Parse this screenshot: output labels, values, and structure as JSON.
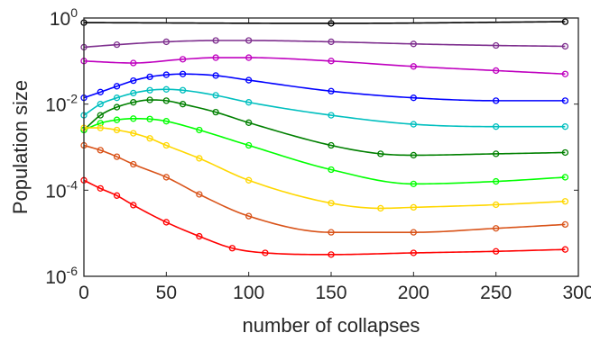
{
  "chart_data": {
    "type": "line",
    "xlabel": "number of collapses",
    "ylabel": "Population size",
    "xlim": [
      0,
      300
    ],
    "ylim": [
      1e-06,
      1
    ],
    "yscale": "log",
    "x_ticks": [
      "0",
      "50",
      "100",
      "150",
      "200",
      "250",
      "300"
    ],
    "y_ticks": [
      {
        "base": "10",
        "exp": "0"
      },
      {
        "base": "10",
        "exp": "-2"
      },
      {
        "base": "10",
        "exp": "-4"
      },
      {
        "base": "10",
        "exp": "-6"
      }
    ],
    "grid": false,
    "legend": "none",
    "marker": "open-circle",
    "series": [
      {
        "color": "#000000",
        "x": [
          0,
          150,
          292
        ],
        "y": [
          0.78,
          0.75,
          0.82
        ]
      },
      {
        "color": "#7e2f8e",
        "x": [
          0,
          20,
          50,
          80,
          100,
          150,
          200,
          250,
          292
        ],
        "y": [
          0.21,
          0.24,
          0.28,
          0.3,
          0.3,
          0.28,
          0.25,
          0.23,
          0.22
        ]
      },
      {
        "color": "#bf00bf",
        "x": [
          0,
          30,
          60,
          80,
          100,
          150,
          200,
          250,
          292
        ],
        "y": [
          0.1,
          0.09,
          0.11,
          0.12,
          0.12,
          0.1,
          0.075,
          0.06,
          0.05
        ]
      },
      {
        "color": "#0000ff",
        "x": [
          0,
          10,
          20,
          30,
          40,
          50,
          60,
          80,
          100,
          150,
          200,
          250,
          292
        ],
        "y": [
          0.014,
          0.019,
          0.026,
          0.035,
          0.043,
          0.048,
          0.05,
          0.046,
          0.036,
          0.02,
          0.014,
          0.012,
          0.012
        ]
      },
      {
        "color": "#00bfbf",
        "x": [
          0,
          10,
          20,
          30,
          40,
          50,
          60,
          80,
          100,
          150,
          200,
          250,
          292
        ],
        "y": [
          0.0055,
          0.01,
          0.014,
          0.018,
          0.021,
          0.022,
          0.021,
          0.016,
          0.011,
          0.0055,
          0.0034,
          0.003,
          0.003
        ]
      },
      {
        "color": "#008000",
        "x": [
          0,
          10,
          20,
          30,
          40,
          50,
          60,
          80,
          100,
          150,
          180,
          200,
          250,
          292
        ],
        "y": [
          0.0025,
          0.0055,
          0.0085,
          0.011,
          0.0125,
          0.012,
          0.01,
          0.0065,
          0.0037,
          0.0011,
          0.0007,
          0.00065,
          0.0007,
          0.00075
        ]
      },
      {
        "color": "#00ff00",
        "x": [
          0,
          10,
          20,
          30,
          40,
          50,
          70,
          100,
          150,
          200,
          250,
          292
        ],
        "y": [
          0.0025,
          0.0036,
          0.0043,
          0.0046,
          0.0045,
          0.004,
          0.0025,
          0.0011,
          0.0003,
          0.00014,
          0.00016,
          0.0002
        ]
      },
      {
        "color": "#ffd700",
        "x": [
          0,
          10,
          20,
          30,
          40,
          50,
          70,
          100,
          150,
          180,
          200,
          250,
          292
        ],
        "y": [
          0.0028,
          0.0028,
          0.0025,
          0.0021,
          0.0016,
          0.0011,
          0.00055,
          0.00017,
          5e-05,
          3.8e-05,
          4e-05,
          4.6e-05,
          5.5e-05
        ]
      },
      {
        "color": "#d95319",
        "x": [
          0,
          10,
          20,
          30,
          50,
          70,
          100,
          150,
          200,
          250,
          292
        ],
        "y": [
          0.0011,
          0.00085,
          0.0006,
          0.0004,
          0.0002,
          8e-05,
          2.5e-05,
          1.05e-05,
          1.05e-05,
          1.3e-05,
          1.6e-05
        ]
      },
      {
        "color": "#ff0000",
        "x": [
          0,
          10,
          20,
          30,
          50,
          70,
          90,
          110,
          150,
          200,
          250,
          292
        ],
        "y": [
          0.00017,
          0.00011,
          7.5e-05,
          4.5e-05,
          1.8e-05,
          8.5e-06,
          4.5e-06,
          3.5e-06,
          3.2e-06,
          3.5e-06,
          3.8e-06,
          4.2e-06
        ]
      }
    ]
  }
}
